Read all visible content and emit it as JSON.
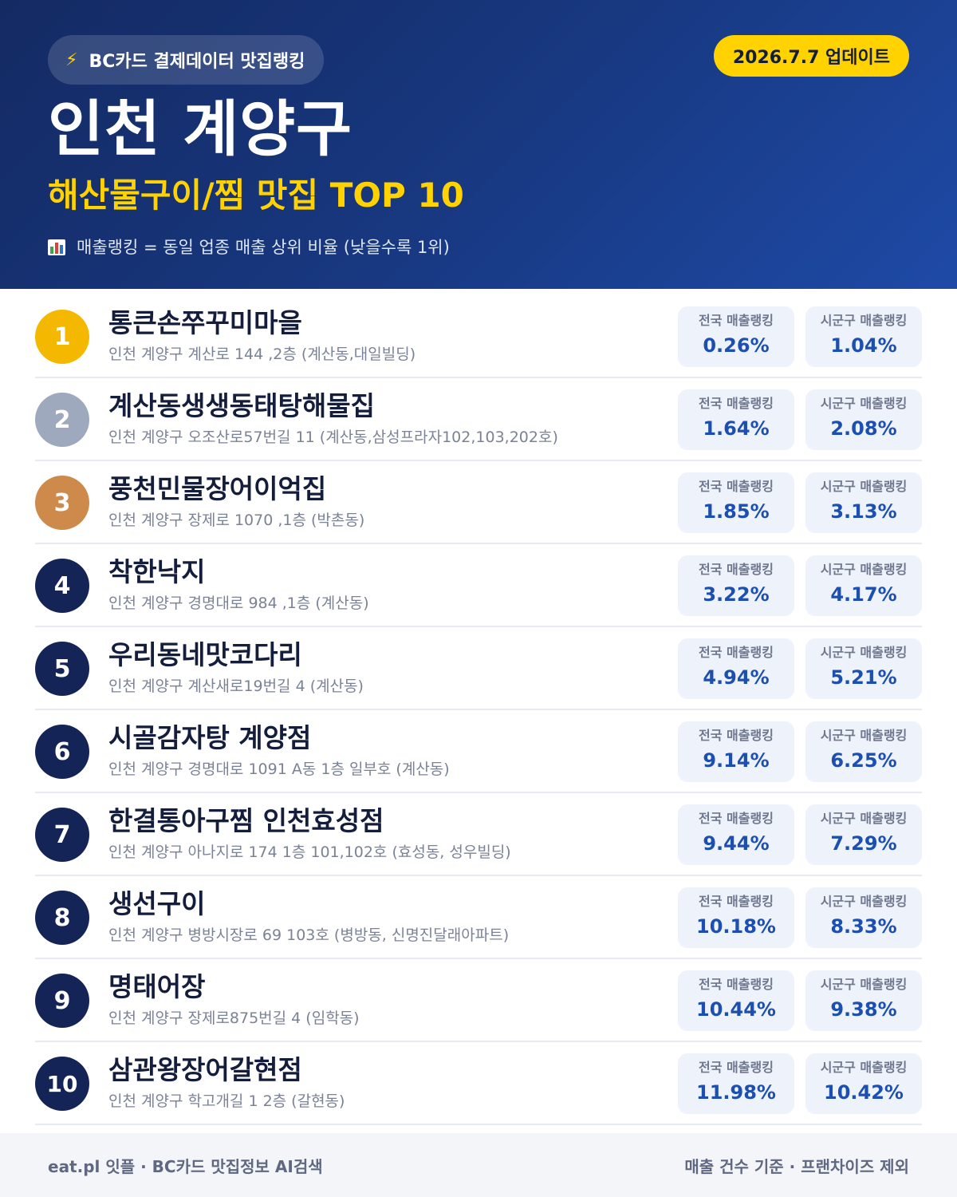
{
  "header": {
    "source_pill": "BC카드 결제데이터 맛집랭킹",
    "update_badge": "2026.7.7 업데이트",
    "region": "인천 계양구",
    "category": "해산물구이/찜 맛집 TOP 10",
    "note": "매출랭킹 = 동일 업종 매출 상위 비율 (낮을수록 1위)",
    "icons": {
      "source": "lightning-bolt-icon",
      "note": "bar-chart-icon"
    },
    "colors": {
      "accent": "#ffd200",
      "header_bg": "#17367c"
    }
  },
  "labels": {
    "national": "전국 매출랭킹",
    "local": "시군구 매출랭킹"
  },
  "restaurants": [
    {
      "rank": "1",
      "name": "통큰손쭈꾸미마을",
      "address": "인천 계양구 계산로 144 ,2층 (계산동,대일빌딩)",
      "national": "0.26%",
      "local": "1.04%"
    },
    {
      "rank": "2",
      "name": "계산동생생동태탕해물집",
      "address": "인천 계양구 오조산로57번길 11 (계산동,삼성프라자102,103,202호)",
      "national": "1.64%",
      "local": "2.08%"
    },
    {
      "rank": "3",
      "name": "풍천민물장어이억집",
      "address": "인천 계양구 장제로 1070 ,1층 (박촌동)",
      "national": "1.85%",
      "local": "3.13%"
    },
    {
      "rank": "4",
      "name": "착한낙지",
      "address": "인천 계양구 경명대로 984 ,1층 (계산동)",
      "national": "3.22%",
      "local": "4.17%"
    },
    {
      "rank": "5",
      "name": "우리동네맛코다리",
      "address": "인천 계양구 계산새로19번길 4 (계산동)",
      "national": "4.94%",
      "local": "5.21%"
    },
    {
      "rank": "6",
      "name": "시골감자탕 계양점",
      "address": "인천 계양구 경명대로 1091 A동 1층 일부호 (계산동)",
      "national": "9.14%",
      "local": "6.25%"
    },
    {
      "rank": "7",
      "name": "한결통아구찜 인천효성점",
      "address": "인천 계양구 아나지로 174 1층 101,102호 (효성동, 성우빌딩)",
      "national": "9.44%",
      "local": "7.29%"
    },
    {
      "rank": "8",
      "name": "생선구이",
      "address": "인천 계양구 병방시장로 69 103호 (병방동, 신명진달래아파트)",
      "national": "10.18%",
      "local": "8.33%"
    },
    {
      "rank": "9",
      "name": "명태어장",
      "address": "인천 계양구 장제로875번길 4 (임학동)",
      "national": "10.44%",
      "local": "9.38%"
    },
    {
      "rank": "10",
      "name": "삼관왕장어갈현점",
      "address": "인천 계양구 학고개길 1 2층 (갈현동)",
      "national": "11.98%",
      "local": "10.42%"
    }
  ],
  "footer": {
    "left": "eat.pl 잇플 · BC카드 맛집정보 AI검색",
    "right": "매출 건수 기준 · 프랜차이즈 제외"
  }
}
